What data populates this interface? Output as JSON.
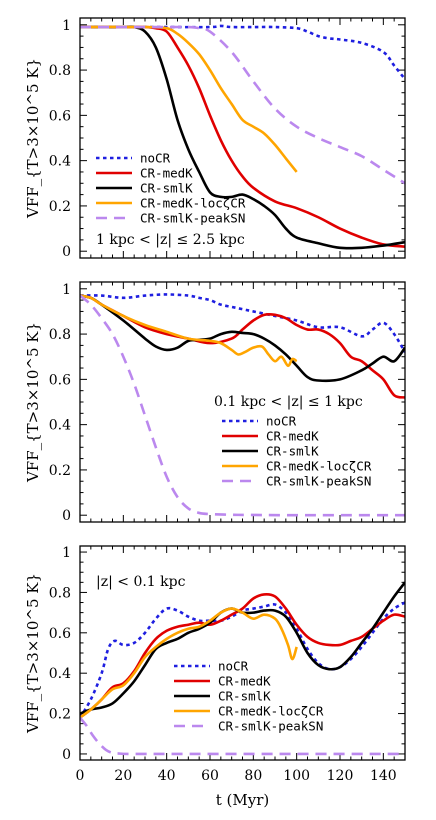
{
  "chart_data": [
    {
      "type": "line",
      "panel": "top",
      "annotation": "1 kpc < |z| ≤ 2.5 kpc",
      "ylabel": "VFF_{T>3×10^5 K}",
      "xlabel": "",
      "xlim": [
        0,
        150
      ],
      "ylim": [
        -0.03,
        1.03
      ],
      "xticks": [
        0,
        20,
        40,
        60,
        80,
        100,
        120,
        140
      ],
      "yticks": [
        0,
        0.2,
        0.4,
        0.6,
        0.8,
        1
      ],
      "ytick_labels": [
        "0",
        "0.2",
        "0.4",
        "0.6",
        "0.8",
        "1"
      ],
      "legend_position": "lower-left",
      "series": [
        {
          "name": "noCR",
          "color": "#1f1fe0",
          "dash": "dotted",
          "x": [
            0,
            20,
            40,
            60,
            65,
            70,
            80,
            90,
            100,
            105,
            110,
            115,
            120,
            130,
            140,
            145,
            150
          ],
          "y": [
            0.99,
            0.99,
            0.99,
            0.99,
            0.995,
            0.99,
            0.99,
            0.99,
            0.985,
            0.97,
            0.95,
            0.94,
            0.935,
            0.92,
            0.88,
            0.82,
            0.76
          ]
        },
        {
          "name": "CR-medK",
          "color": "#e00000",
          "dash": "solid",
          "x": [
            0,
            20,
            30,
            35,
            40,
            45,
            50,
            55,
            60,
            65,
            70,
            75,
            80,
            90,
            100,
            110,
            120,
            130,
            140,
            150
          ],
          "y": [
            0.99,
            0.99,
            0.99,
            0.985,
            0.97,
            0.9,
            0.82,
            0.72,
            0.6,
            0.49,
            0.4,
            0.33,
            0.28,
            0.22,
            0.19,
            0.15,
            0.1,
            0.06,
            0.03,
            0.02
          ]
        },
        {
          "name": "CR-smlK",
          "color": "#000000",
          "dash": "solid",
          "x": [
            0,
            20,
            25,
            30,
            35,
            40,
            45,
            50,
            55,
            60,
            65,
            70,
            75,
            80,
            85,
            90,
            95,
            100,
            110,
            120,
            130,
            140,
            150
          ],
          "y": [
            0.99,
            0.99,
            0.99,
            0.97,
            0.9,
            0.76,
            0.58,
            0.45,
            0.35,
            0.26,
            0.24,
            0.24,
            0.25,
            0.23,
            0.2,
            0.16,
            0.1,
            0.06,
            0.035,
            0.015,
            0.015,
            0.025,
            0.04
          ]
        },
        {
          "name": "CR-medK-locζCR",
          "color": "#ffa500",
          "dash": "solid",
          "x": [
            0,
            30,
            40,
            45,
            50,
            55,
            60,
            65,
            70,
            75,
            80,
            85,
            90,
            95,
            100
          ],
          "y": [
            0.99,
            0.99,
            0.985,
            0.96,
            0.92,
            0.87,
            0.8,
            0.72,
            0.65,
            0.58,
            0.55,
            0.52,
            0.47,
            0.41,
            0.35
          ]
        },
        {
          "name": "CR-smlK-peakSN",
          "color": "#bb88ee",
          "dash": "dashed",
          "x": [
            0,
            40,
            50,
            55,
            60,
            70,
            80,
            90,
            100,
            110,
            120,
            130,
            140,
            150
          ],
          "y": [
            0.99,
            0.99,
            0.99,
            0.985,
            0.97,
            0.88,
            0.75,
            0.63,
            0.55,
            0.5,
            0.46,
            0.42,
            0.36,
            0.3
          ]
        }
      ]
    },
    {
      "type": "line",
      "panel": "middle",
      "annotation": "0.1 kpc < |z| ≤ 1 kpc",
      "ylabel": "VFF_{T>3×10^5 K}",
      "xlabel": "",
      "xlim": [
        0,
        150
      ],
      "ylim": [
        -0.03,
        1.03
      ],
      "xticks": [
        0,
        20,
        40,
        60,
        80,
        100,
        120,
        140
      ],
      "yticks": [
        0,
        0.2,
        0.4,
        0.6,
        0.8,
        1
      ],
      "ytick_labels": [
        "0",
        "0.2",
        "0.4",
        "0.6",
        "0.8",
        "1"
      ],
      "legend_position": "lower-right",
      "series": [
        {
          "name": "noCR",
          "color": "#1f1fe0",
          "dash": "dotted",
          "x": [
            0,
            10,
            20,
            30,
            40,
            50,
            55,
            60,
            65,
            70,
            75,
            80,
            90,
            100,
            110,
            120,
            130,
            135,
            140,
            145,
            150
          ],
          "y": [
            0.97,
            0.97,
            0.96,
            0.97,
            0.975,
            0.97,
            0.96,
            0.95,
            0.93,
            0.92,
            0.91,
            0.9,
            0.88,
            0.86,
            0.83,
            0.83,
            0.79,
            0.82,
            0.85,
            0.8,
            0.72
          ]
        },
        {
          "name": "CR-medK",
          "color": "#e00000",
          "dash": "solid",
          "x": [
            0,
            5,
            10,
            20,
            30,
            40,
            50,
            60,
            70,
            75,
            80,
            85,
            90,
            95,
            100,
            105,
            110,
            115,
            120,
            125,
            130,
            135,
            140,
            145,
            150
          ],
          "y": [
            0.97,
            0.96,
            0.93,
            0.88,
            0.83,
            0.8,
            0.78,
            0.76,
            0.78,
            0.82,
            0.86,
            0.885,
            0.885,
            0.87,
            0.84,
            0.82,
            0.82,
            0.8,
            0.76,
            0.7,
            0.68,
            0.64,
            0.6,
            0.53,
            0.52
          ]
        },
        {
          "name": "CR-smlK",
          "color": "#000000",
          "dash": "solid",
          "x": [
            0,
            5,
            10,
            20,
            30,
            35,
            40,
            45,
            50,
            55,
            60,
            65,
            70,
            75,
            80,
            85,
            90,
            95,
            100,
            105,
            110,
            120,
            130,
            135,
            140,
            145,
            150
          ],
          "y": [
            0.97,
            0.96,
            0.93,
            0.86,
            0.78,
            0.745,
            0.73,
            0.74,
            0.77,
            0.775,
            0.78,
            0.8,
            0.81,
            0.805,
            0.8,
            0.78,
            0.75,
            0.71,
            0.66,
            0.61,
            0.595,
            0.6,
            0.64,
            0.67,
            0.7,
            0.68,
            0.74
          ]
        },
        {
          "name": "CR-medK-locζCR",
          "color": "#ffa500",
          "dash": "solid",
          "x": [
            0,
            5,
            10,
            20,
            30,
            40,
            50,
            60,
            65,
            70,
            73,
            76,
            80,
            84,
            87,
            90,
            93,
            96,
            98,
            100
          ],
          "y": [
            0.97,
            0.96,
            0.93,
            0.88,
            0.84,
            0.81,
            0.78,
            0.77,
            0.76,
            0.73,
            0.71,
            0.72,
            0.74,
            0.745,
            0.71,
            0.68,
            0.7,
            0.66,
            0.69,
            0.68
          ]
        },
        {
          "name": "CR-smlK-peakSN",
          "color": "#bb88ee",
          "dash": "dashed",
          "x": [
            0,
            5,
            10,
            15,
            20,
            25,
            30,
            35,
            40,
            45,
            50,
            55,
            60,
            70,
            80,
            100,
            120,
            150
          ],
          "y": [
            0.97,
            0.93,
            0.87,
            0.8,
            0.7,
            0.58,
            0.44,
            0.3,
            0.17,
            0.08,
            0.03,
            0.01,
            0.005,
            0.002,
            0.001,
            0,
            0,
            0
          ]
        }
      ]
    },
    {
      "type": "line",
      "panel": "bottom",
      "annotation": "|z| < 0.1 kpc",
      "ylabel": "VFF_{T>3×10^5 K}",
      "xlabel": "t (Myr)",
      "xlim": [
        0,
        150
      ],
      "ylim": [
        -0.03,
        1.03
      ],
      "xticks": [
        0,
        20,
        40,
        60,
        80,
        100,
        120,
        140
      ],
      "yticks": [
        0,
        0.2,
        0.4,
        0.6,
        0.8,
        1
      ],
      "ytick_labels": [
        "0",
        "0.2",
        "0.4",
        "0.6",
        "0.8",
        "1"
      ],
      "legend_position": "lower-center",
      "series": [
        {
          "name": "noCR",
          "color": "#1f1fe0",
          "dash": "dotted",
          "x": [
            0,
            5,
            10,
            13,
            16,
            20,
            25,
            30,
            35,
            40,
            45,
            50,
            55,
            60,
            65,
            70,
            75,
            80,
            85,
            90,
            95,
            100,
            105,
            110,
            115,
            120,
            125,
            130,
            135,
            140,
            145,
            150
          ],
          "y": [
            0.18,
            0.27,
            0.4,
            0.52,
            0.56,
            0.54,
            0.55,
            0.6,
            0.67,
            0.72,
            0.71,
            0.68,
            0.66,
            0.66,
            0.66,
            0.68,
            0.71,
            0.72,
            0.73,
            0.74,
            0.7,
            0.62,
            0.52,
            0.45,
            0.42,
            0.43,
            0.47,
            0.53,
            0.6,
            0.67,
            0.72,
            0.75
          ]
        },
        {
          "name": "CR-medK",
          "color": "#e00000",
          "dash": "solid",
          "x": [
            0,
            5,
            10,
            15,
            20,
            25,
            30,
            35,
            40,
            45,
            50,
            55,
            60,
            65,
            70,
            75,
            80,
            85,
            90,
            95,
            100,
            105,
            110,
            115,
            120,
            125,
            130,
            135,
            140,
            145,
            150
          ],
          "y": [
            0.18,
            0.22,
            0.27,
            0.33,
            0.35,
            0.41,
            0.5,
            0.57,
            0.61,
            0.63,
            0.64,
            0.65,
            0.64,
            0.66,
            0.69,
            0.72,
            0.77,
            0.79,
            0.78,
            0.72,
            0.64,
            0.58,
            0.55,
            0.54,
            0.54,
            0.56,
            0.58,
            0.62,
            0.66,
            0.69,
            0.68
          ]
        },
        {
          "name": "CR-smlK",
          "color": "#000000",
          "dash": "solid",
          "x": [
            0,
            5,
            10,
            15,
            20,
            25,
            30,
            35,
            40,
            45,
            50,
            55,
            60,
            65,
            70,
            75,
            80,
            85,
            90,
            95,
            100,
            105,
            110,
            115,
            120,
            125,
            130,
            135,
            140,
            145,
            150
          ],
          "y": [
            0.2,
            0.22,
            0.23,
            0.25,
            0.3,
            0.36,
            0.44,
            0.52,
            0.55,
            0.57,
            0.6,
            0.62,
            0.65,
            0.7,
            0.72,
            0.7,
            0.7,
            0.71,
            0.71,
            0.68,
            0.6,
            0.5,
            0.44,
            0.42,
            0.43,
            0.48,
            0.55,
            0.62,
            0.7,
            0.78,
            0.85
          ]
        },
        {
          "name": "CR-medK-locζCR",
          "color": "#ffa500",
          "dash": "solid",
          "x": [
            0,
            5,
            10,
            15,
            20,
            25,
            30,
            35,
            40,
            45,
            50,
            55,
            60,
            65,
            70,
            75,
            80,
            85,
            90,
            93,
            96,
            98,
            100
          ],
          "y": [
            0.18,
            0.22,
            0.27,
            0.32,
            0.34,
            0.4,
            0.48,
            0.53,
            0.57,
            0.6,
            0.62,
            0.63,
            0.66,
            0.7,
            0.72,
            0.7,
            0.67,
            0.69,
            0.67,
            0.62,
            0.54,
            0.47,
            0.53
          ]
        },
        {
          "name": "CR-smlK-peakSN",
          "color": "#bb88ee",
          "dash": "dashed",
          "x": [
            0,
            3,
            6,
            9,
            12,
            15,
            18,
            22,
            30,
            40,
            60,
            100,
            150
          ],
          "y": [
            0.18,
            0.14,
            0.09,
            0.05,
            0.02,
            0.005,
            0.002,
            0,
            0,
            0,
            0,
            0,
            0
          ]
        }
      ]
    }
  ]
}
